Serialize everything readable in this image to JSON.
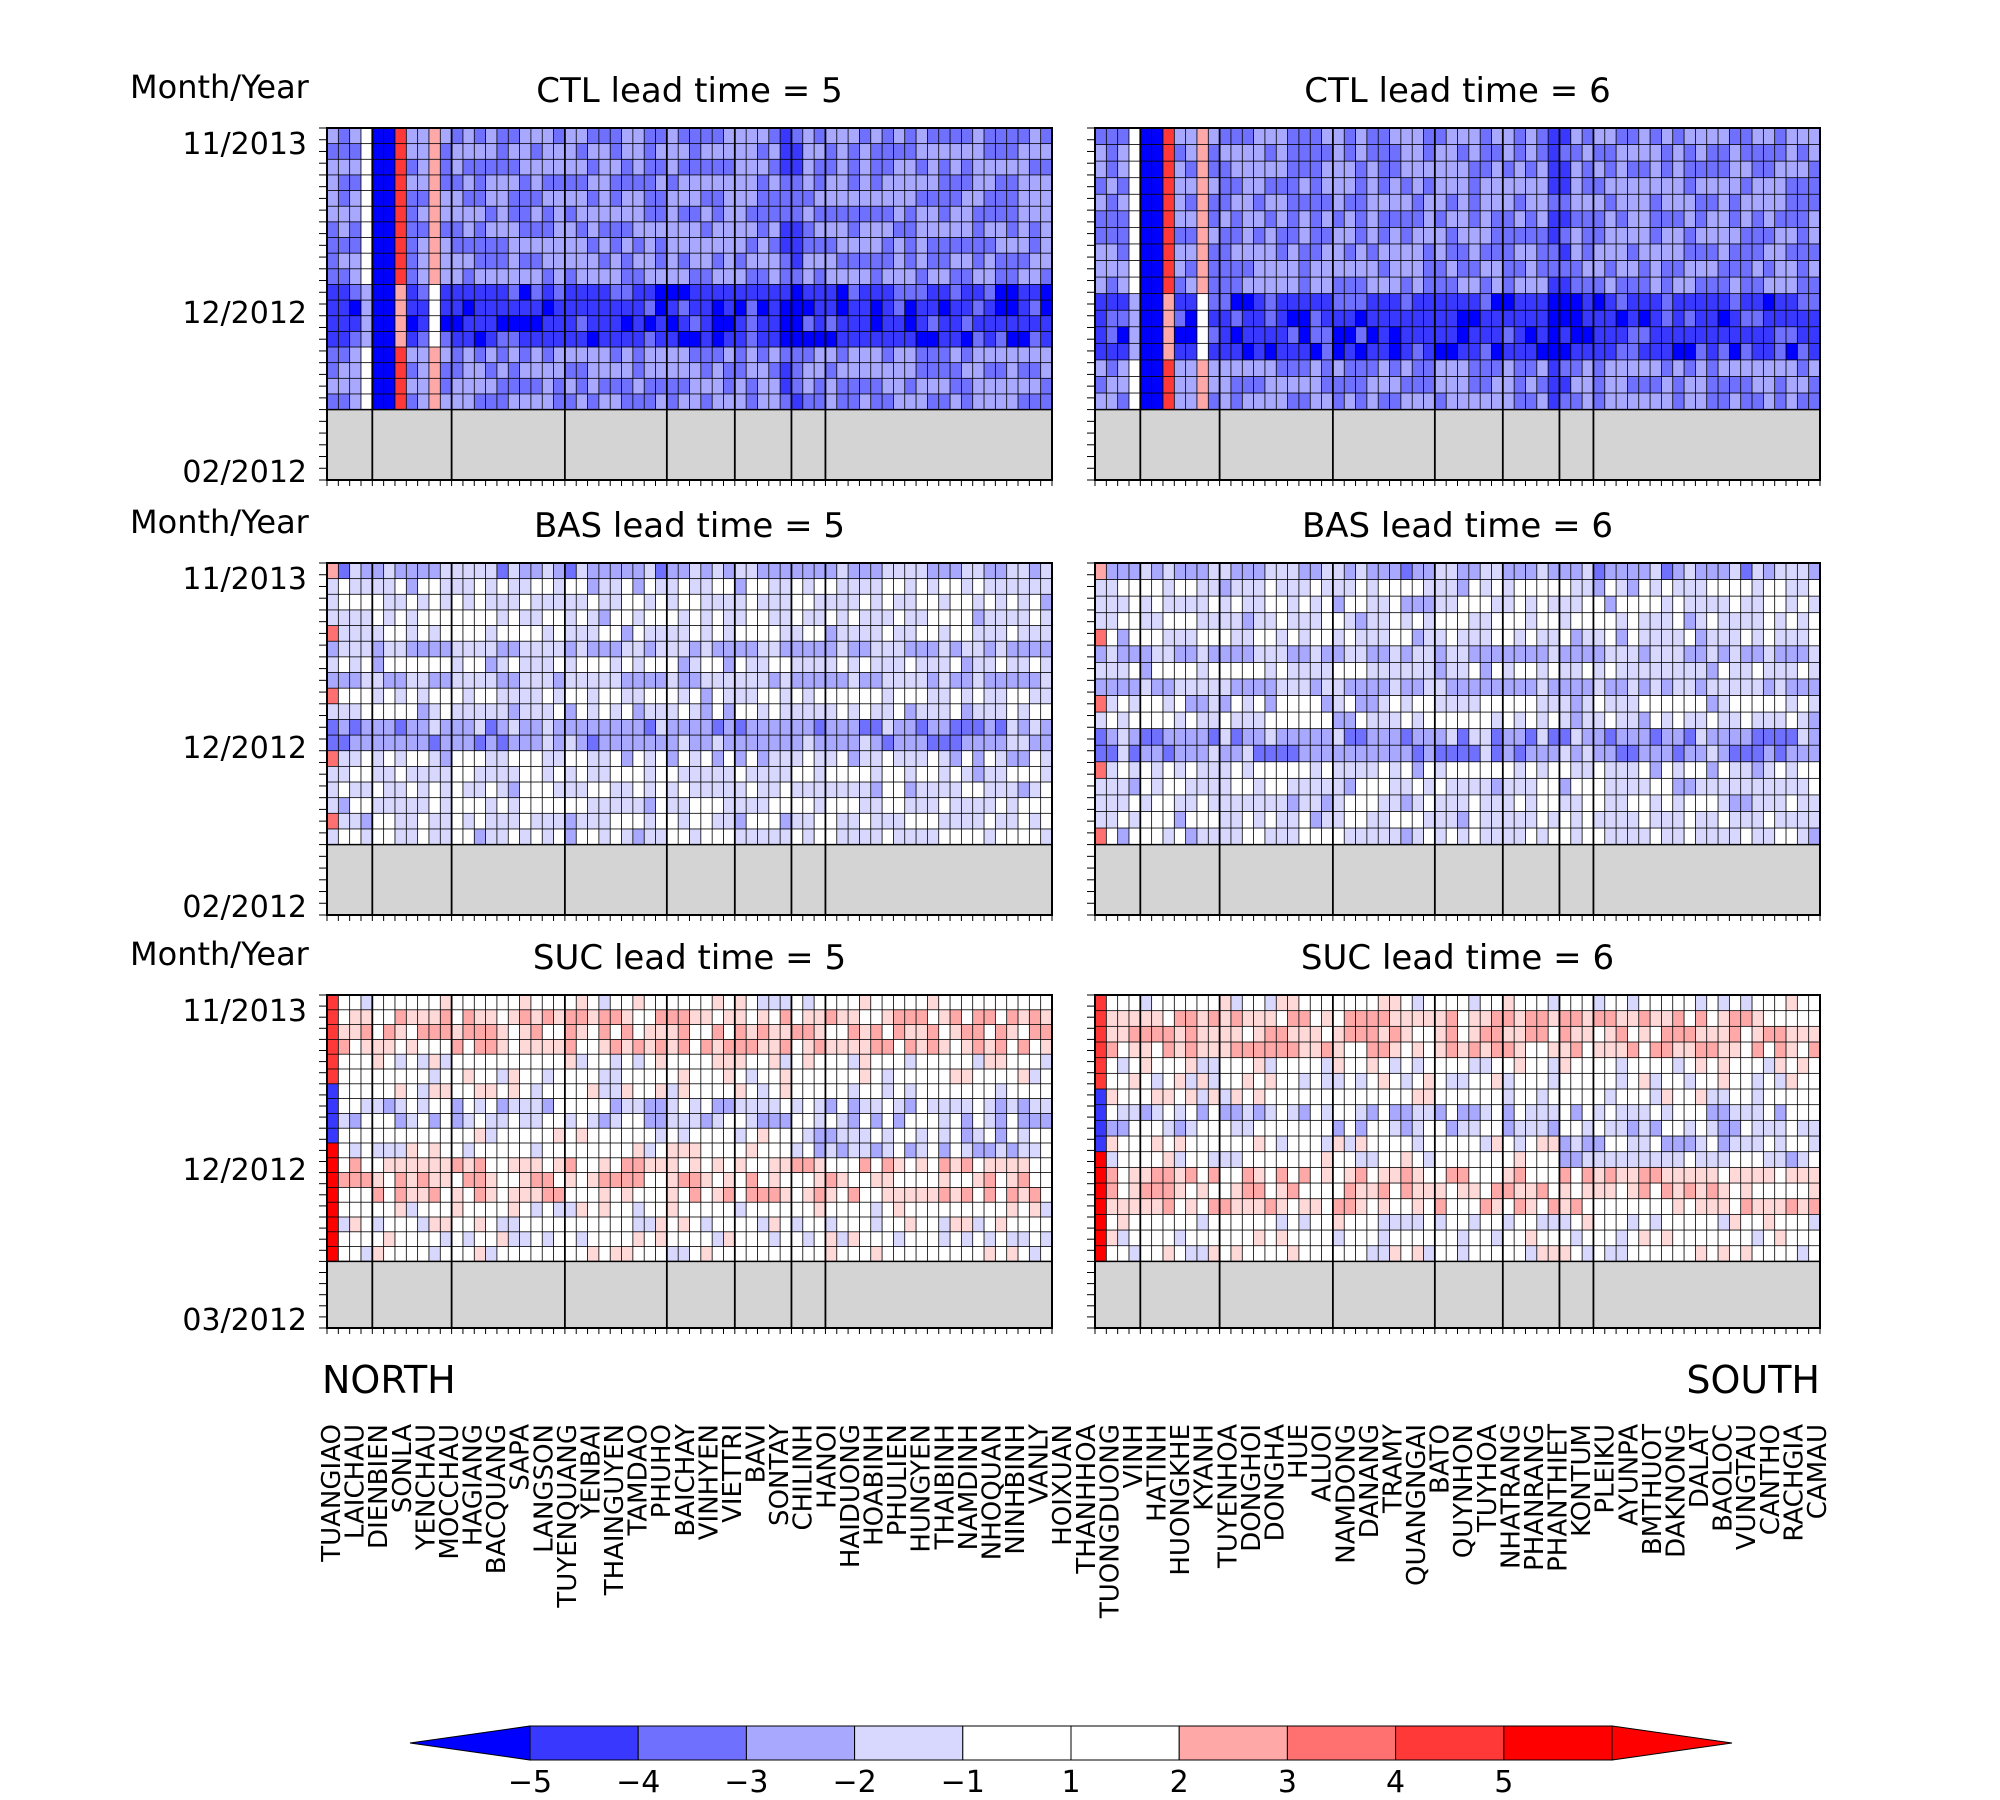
{
  "chart_data": {
    "type": "heatmap",
    "y_axis_title": "Month/Year",
    "region_labels": {
      "left": "NORTH",
      "right": "SOUTH"
    },
    "stations": [
      "TUANGIAO",
      "LAICHAU",
      "DIENBIEN",
      "SONLA",
      "YENCHAU",
      "MOCCHAU",
      "HAGIANG",
      "BACQUANG",
      "SAPA",
      "LANGSON",
      "TUYENQUANG",
      "YENBAI",
      "THAINGUYEN",
      "TAMDAO",
      "PHUHO",
      "BAICHAY",
      "VINHYEN",
      "VIETTRI",
      "BAVI",
      "SONTAY",
      "CHILINH",
      "HANOI",
      "HAIDUONG",
      "HOABINH",
      "PHULIEN",
      "HUNGYEN",
      "THAIBINH",
      "NAMDINH",
      "NHOQUAN",
      "NINHBINH",
      "VANLY",
      "HOIXUAN",
      "THANHHOA",
      "TUONGDUONG",
      "VINH",
      "HATINH",
      "HUONGKHE",
      "KYANH",
      "TUYENHOA",
      "DONGHOI",
      "DONGHA",
      "HUE",
      "ALUOI",
      "NAMDONG",
      "DANANG",
      "TRAMY",
      "QUANGNGAI",
      "BATO",
      "QUYNHON",
      "TUYHOA",
      "NHATRANG",
      "PHANRANG",
      "PHANTHIET",
      "KONTUM",
      "PLEIKU",
      "AYUNPA",
      "BMTHUOT",
      "DAKNONG",
      "DALAT",
      "BAOLOC",
      "VUNGTAU",
      "CANTHO",
      "RACHGIA",
      "CAMAU"
    ],
    "panels": [
      {
        "title": "CTL lead time = 5",
        "y_ticks": [
          "11/2013",
          "12/2012",
          "02/2012"
        ]
      },
      {
        "title": "CTL lead time = 6",
        "y_ticks": []
      },
      {
        "title": "BAS lead time = 5",
        "y_ticks": [
          "11/2013",
          "12/2012",
          "02/2012"
        ]
      },
      {
        "title": "BAS lead time = 6",
        "y_ticks": []
      },
      {
        "title": "SUC lead time = 5",
        "y_ticks": [
          "11/2013",
          "12/2012",
          "03/2012"
        ]
      },
      {
        "title": "SUC lead time = 6",
        "y_ticks": []
      }
    ],
    "colorbar": {
      "ticks": [
        "−5",
        "−4",
        "−3",
        "−2",
        "−1",
        "1",
        "2",
        "3",
        "4",
        "5"
      ],
      "colors": [
        "#0000ff",
        "#3838ff",
        "#7070ff",
        "#a8a8ff",
        "#d8d8ff",
        "#ffffff",
        "#ffd8d8",
        "#ffa8a8",
        "#ff7070",
        "#ff3838",
        "#ff0000"
      ]
    }
  }
}
